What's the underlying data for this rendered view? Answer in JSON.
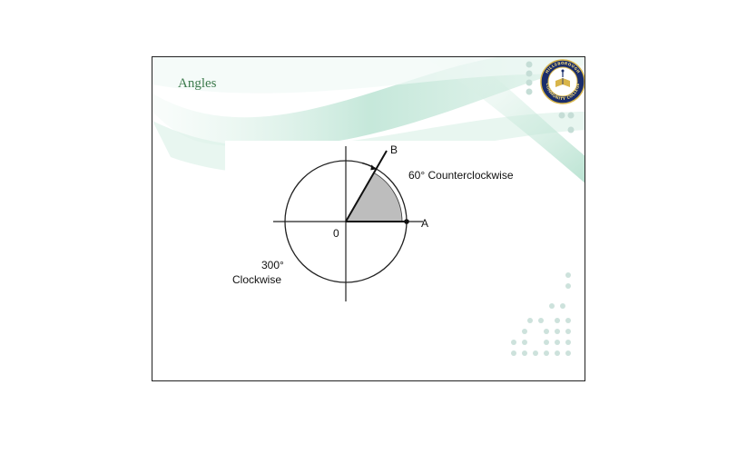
{
  "slide": {
    "title": "Angles"
  },
  "seal": {
    "top_text": "HILLSBOROUGH",
    "bottom_text": "COMMUNITY COLLEGE"
  },
  "diagram": {
    "point_b": "B",
    "point_a": "A",
    "origin": "0",
    "ccw_label": "60° Counterclockwise",
    "cw_value": "300°",
    "cw_label": "Clockwise",
    "angle_degrees": 60
  },
  "colors": {
    "title_green": "#3c7a4c",
    "seal_navy": "#1a2d6b",
    "seal_gold": "#d8b54a",
    "swoosh": "#bfe5d6",
    "dots": "#c5ddd6",
    "sector_fill": "#bdbdbd"
  }
}
